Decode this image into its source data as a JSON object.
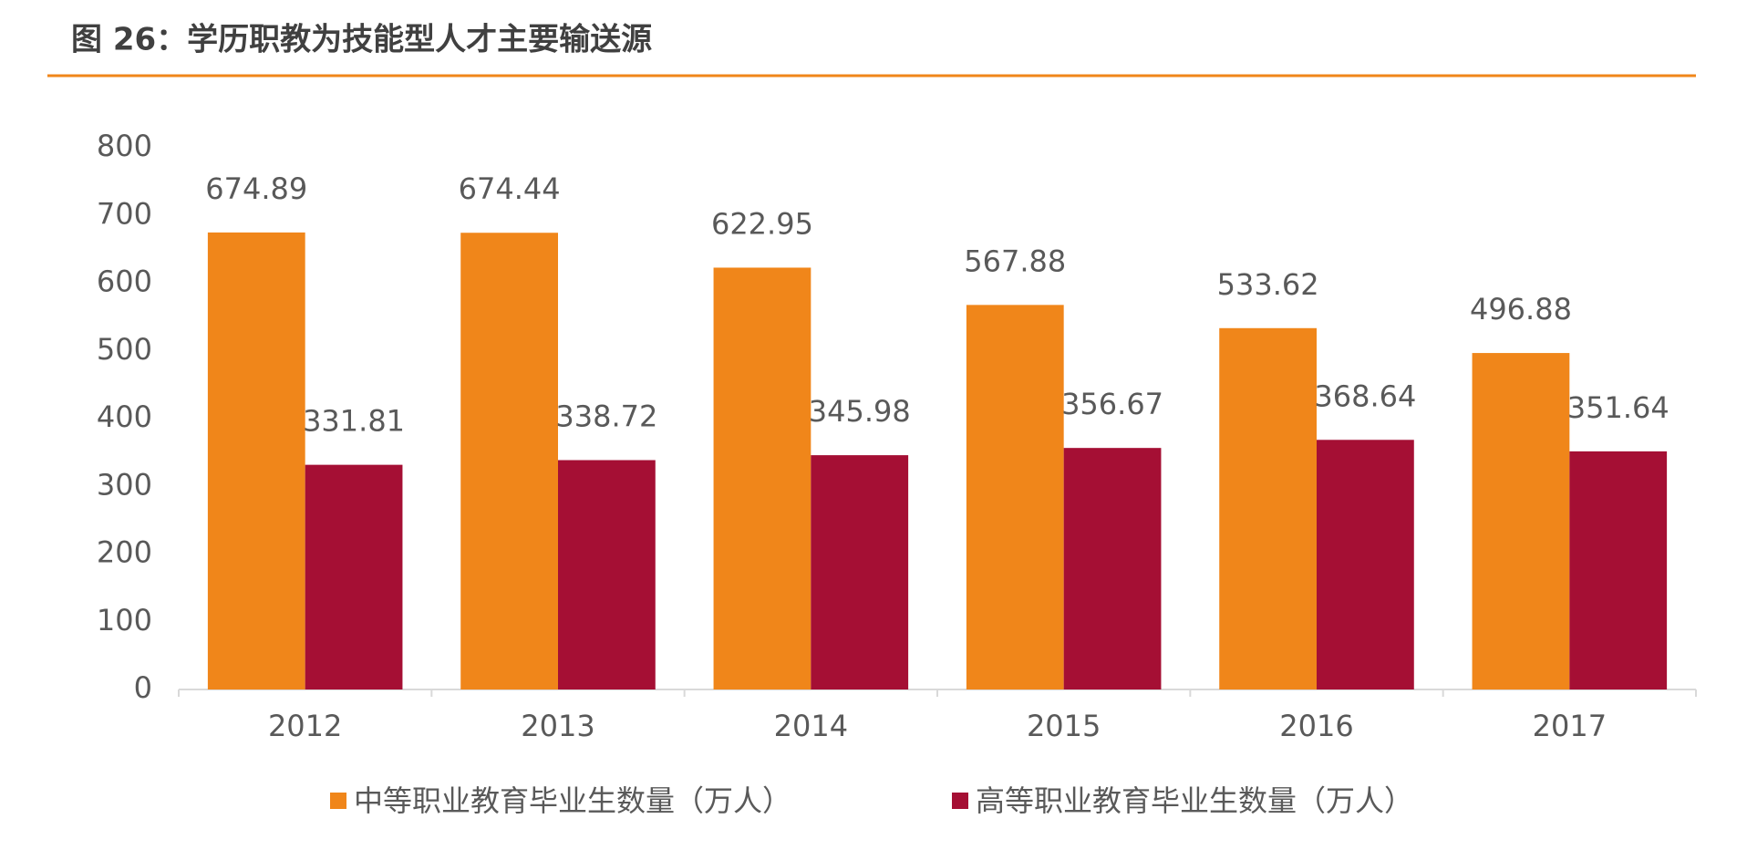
{
  "chart_data": {
    "type": "bar",
    "title": "图 26：学历职教为技能型人才主要输送源",
    "categories": [
      "2012",
      "2013",
      "2014",
      "2015",
      "2016",
      "2017"
    ],
    "series": [
      {
        "name": "中等职业教育毕业生数量（万人）",
        "color": "#f0861a",
        "values": [
          674.89,
          674.44,
          622.95,
          567.88,
          533.62,
          496.88
        ]
      },
      {
        "name": "高等职业教育毕业生数量（万人）",
        "color": "#a50f34",
        "values": [
          331.81,
          338.72,
          345.98,
          356.67,
          368.64,
          351.64
        ]
      }
    ],
    "ylim": [
      0,
      800
    ],
    "yticks": [
      0,
      100,
      200,
      300,
      400,
      500,
      600,
      700,
      800
    ],
    "grid": false,
    "legend": "bottom"
  }
}
